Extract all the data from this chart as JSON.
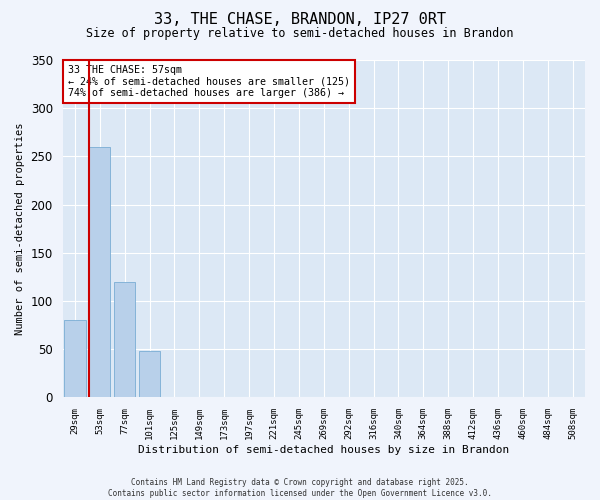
{
  "title": "33, THE CHASE, BRANDON, IP27 0RT",
  "subtitle": "Size of property relative to semi-detached houses in Brandon",
  "xlabel": "Distribution of semi-detached houses by size in Brandon",
  "ylabel": "Number of semi-detached properties",
  "categories": [
    "29sqm",
    "53sqm",
    "77sqm",
    "101sqm",
    "125sqm",
    "149sqm",
    "173sqm",
    "197sqm",
    "221sqm",
    "245sqm",
    "269sqm",
    "292sqm",
    "316sqm",
    "340sqm",
    "364sqm",
    "388sqm",
    "412sqm",
    "436sqm",
    "460sqm",
    "484sqm",
    "508sqm"
  ],
  "values": [
    80,
    260,
    120,
    48,
    0,
    0,
    0,
    0,
    0,
    0,
    0,
    0,
    0,
    0,
    0,
    0,
    0,
    0,
    0,
    0,
    0
  ],
  "bar_color": "#b8d0ea",
  "bar_edge_color": "#7aadd4",
  "highlight_line_color": "#cc0000",
  "annotation_title": "33 THE CHASE: 57sqm",
  "annotation_line1": "← 24% of semi-detached houses are smaller (125)",
  "annotation_line2": "74% of semi-detached houses are larger (386) →",
  "annotation_box_color": "#cc0000",
  "ylim": [
    0,
    350
  ],
  "yticks": [
    0,
    50,
    100,
    150,
    200,
    250,
    300,
    350
  ],
  "fig_background_color": "#f0f4fc",
  "plot_background_color": "#dce8f5",
  "grid_color": "#ffffff",
  "footer_line1": "Contains HM Land Registry data © Crown copyright and database right 2025.",
  "footer_line2": "Contains public sector information licensed under the Open Government Licence v3.0."
}
